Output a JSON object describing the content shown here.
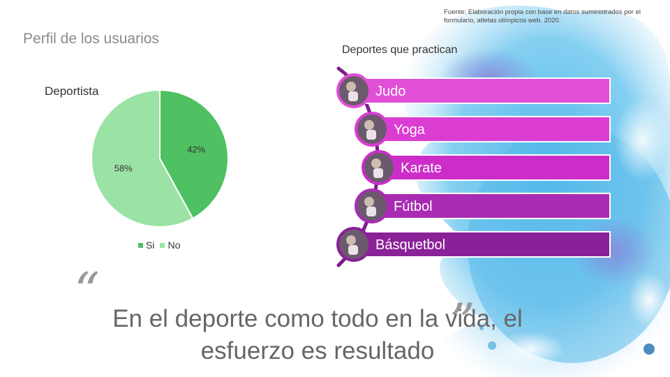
{
  "source_note": "Fuente: Elaboración propia con base en datos suministrados por el formulario, atletas olímpicos web. 2020.",
  "title": "Perfil de los usuarios",
  "chart_data": {
    "type": "pie",
    "title": "Deportista",
    "categories": [
      "Si",
      "No"
    ],
    "values": [
      42,
      58
    ],
    "value_labels": [
      "42%",
      "58%"
    ],
    "colors": [
      "#4fc162",
      "#9ae3a5"
    ],
    "legend": "bottom"
  },
  "sports": {
    "title": "Deportes que practican",
    "items": [
      {
        "label": "Judo",
        "color": "#e04fd6"
      },
      {
        "label": "Yoga",
        "color": "#db3dd2"
      },
      {
        "label": "Karate",
        "color": "#cc2dc8"
      },
      {
        "label": "Fútbol",
        "color": "#a92bb3"
      },
      {
        "label": "Básquetbol",
        "color": "#8a2198"
      }
    ]
  },
  "quote": {
    "text": "En el deporte como todo en la vida, el esfuerzo es resultado",
    "open_mark": "“",
    "close_mark": "”"
  }
}
